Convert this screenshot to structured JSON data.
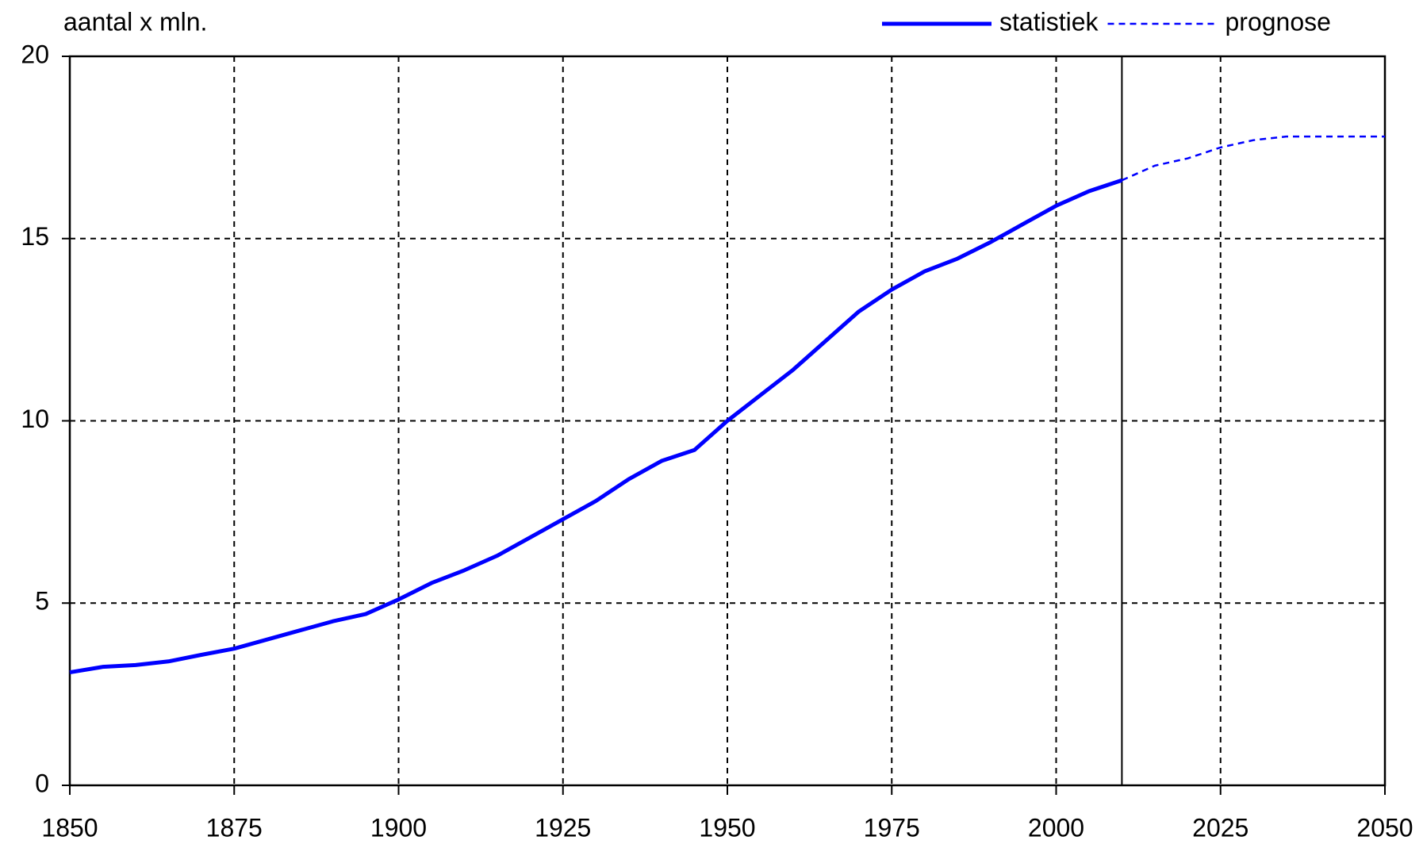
{
  "chart_data": {
    "type": "line",
    "y_axis_label": "aantal x mln.",
    "xlim": [
      1850,
      2050
    ],
    "xticks": [
      1850,
      1875,
      1900,
      1925,
      1950,
      1975,
      2000,
      2025,
      2050
    ],
    "ylim": [
      0,
      20
    ],
    "yticks": [
      0,
      5,
      10,
      15,
      20
    ],
    "grid": true,
    "legend": "top-right",
    "vline": 2010,
    "series": [
      {
        "name": "statistiek",
        "color": "#0000ff",
        "style": "solid",
        "x": [
          1850,
          1855,
          1860,
          1865,
          1870,
          1875,
          1880,
          1885,
          1890,
          1895,
          1900,
          1905,
          1910,
          1915,
          1920,
          1925,
          1930,
          1935,
          1940,
          1945,
          1950,
          1955,
          1960,
          1965,
          1970,
          1975,
          1980,
          1985,
          1990,
          1995,
          2000,
          2005,
          2010
        ],
        "values": [
          3.1,
          3.25,
          3.3,
          3.4,
          3.58,
          3.75,
          4.0,
          4.25,
          4.5,
          4.7,
          5.1,
          5.55,
          5.9,
          6.3,
          6.8,
          7.3,
          7.8,
          8.4,
          8.9,
          9.2,
          10.0,
          10.7,
          11.4,
          12.2,
          13.0,
          13.6,
          14.1,
          14.45,
          14.9,
          15.4,
          15.9,
          16.3,
          16.6
        ]
      },
      {
        "name": "prognose",
        "color": "#0000ff",
        "style": "dashed",
        "x": [
          2010,
          2015,
          2020,
          2025,
          2030,
          2035,
          2040,
          2045,
          2050
        ],
        "values": [
          16.6,
          17.0,
          17.2,
          17.5,
          17.7,
          17.8,
          17.8,
          17.8,
          17.8
        ]
      }
    ]
  }
}
